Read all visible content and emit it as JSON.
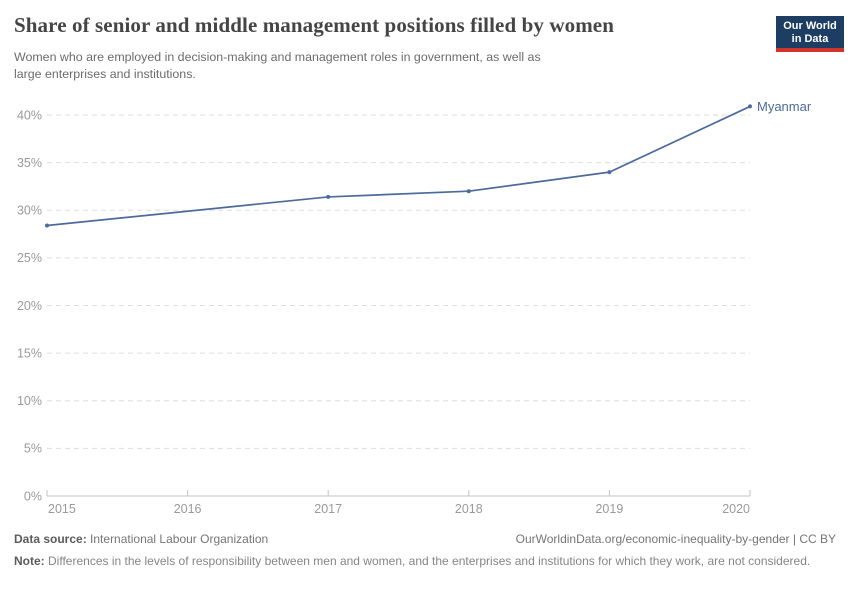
{
  "header": {
    "title": "Share of senior and middle management positions filled by women",
    "subtitle": "Women who are employed in decision-making and management roles in government, as well as large enterprises and institutions.",
    "logo": {
      "line1": "Our World",
      "line2": "in Data",
      "bg_color": "#1d3d63",
      "accent_color": "#d0342c"
    }
  },
  "chart_data": {
    "type": "line",
    "title": "Share of senior and middle management positions filled by women",
    "xlabel": "",
    "ylabel": "",
    "xlim": [
      2015,
      2020
    ],
    "ylim": [
      0,
      42
    ],
    "x_ticks": [
      2015,
      2016,
      2017,
      2018,
      2019,
      2020
    ],
    "y_ticks": [
      0,
      5,
      10,
      15,
      20,
      25,
      30,
      35,
      40
    ],
    "y_tick_suffix": "%",
    "grid": "horizontal-dashed",
    "legend_position": "end-of-line-label",
    "series": [
      {
        "name": "Myanmar",
        "color": "#4c6a9c",
        "points": [
          [
            2015,
            28.4
          ],
          [
            2017,
            31.4
          ],
          [
            2018,
            32.0
          ],
          [
            2019,
            34.0
          ],
          [
            2020,
            40.9
          ]
        ]
      }
    ]
  },
  "footer": {
    "source_label": "Data source:",
    "source_value": "International Labour Organization",
    "citation": "OurWorldinData.org/economic-inequality-by-gender | CC BY",
    "note_label": "Note:",
    "note_text": "Differences in the levels of responsibility between men and women, and the enterprises and institutions for which they work, are not considered."
  }
}
